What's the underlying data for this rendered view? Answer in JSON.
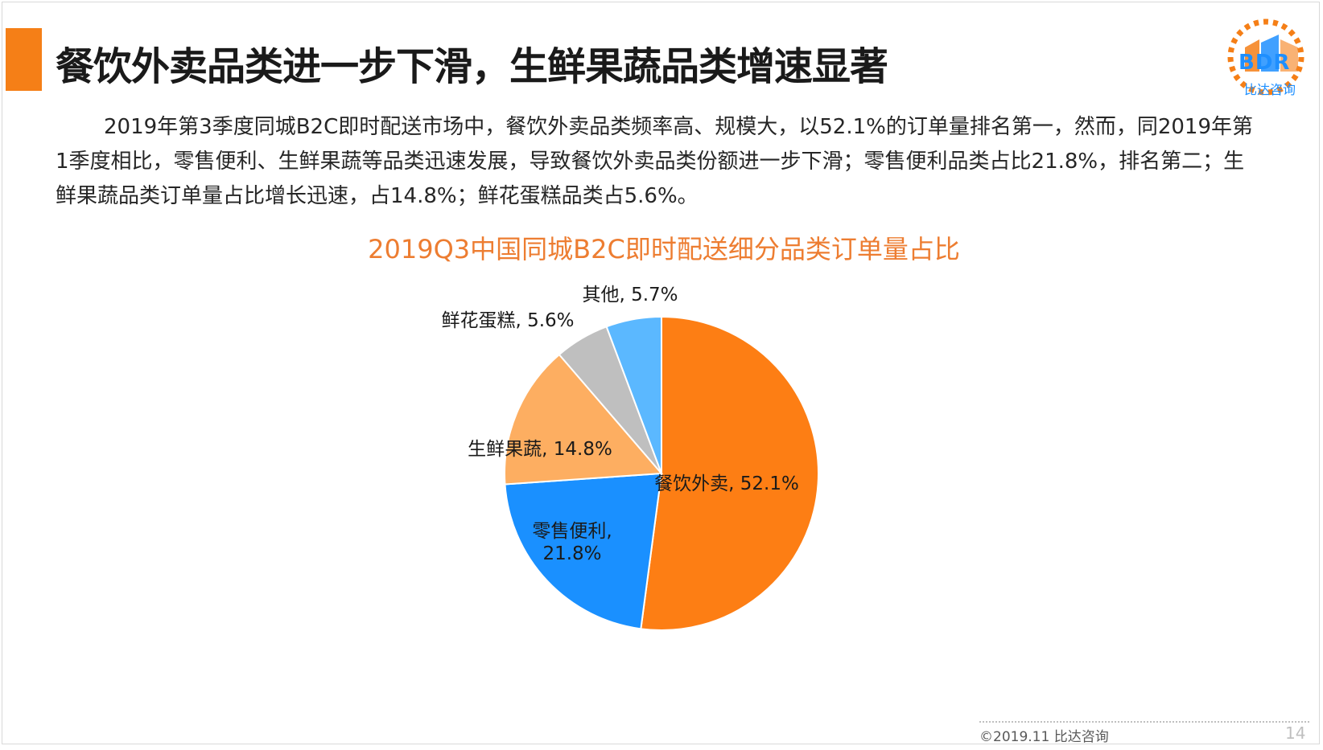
{
  "page": {
    "title": "餐饮外卖品类进一步下滑，生鲜果蔬品类增速显著",
    "paragraph": "2019年第3季度同城B2C即时配送市场中，餐饮外卖品类频率高、规模大，以52.1%的订单量排名第一，然而，同2019年第1季度相比，零售便利、生鲜果蔬等品类迅速发展，导致餐饮外卖品类份额进一步下滑；零售便利品类占比21.8%，排名第二；生鲜果蔬品类订单量占比增长迅速，占14.8%；鲜花蛋糕品类占5.6%。",
    "accent_color": "#f57f17"
  },
  "logo": {
    "text": "BDR",
    "subtitle": "比达咨询",
    "icon": "bdr-logo-icon"
  },
  "footer": {
    "copyright": "©2019.11  比达咨询",
    "page_number": "14"
  },
  "chart_data": {
    "type": "pie",
    "title": "2019Q3中国同城B2C即时配送细分品类订单量占比",
    "slices": [
      {
        "label": "餐饮外卖",
        "value": 52.1,
        "display": "餐饮外卖, 52.1%",
        "color": "#fd7e14"
      },
      {
        "label": "零售便利",
        "value": 21.8,
        "display": "零售便利,\n21.8%",
        "color": "#1a90ff"
      },
      {
        "label": "生鲜果蔬",
        "value": 14.8,
        "display": "生鲜果蔬, 14.8%",
        "color": "#fdae61"
      },
      {
        "label": "鲜花蛋糕",
        "value": 5.6,
        "display": "鲜花蛋糕, 5.6%",
        "color": "#bfbfbf"
      },
      {
        "label": "其他",
        "value": 5.7,
        "display": "其他, 5.7%",
        "color": "#5bb8ff"
      }
    ]
  }
}
